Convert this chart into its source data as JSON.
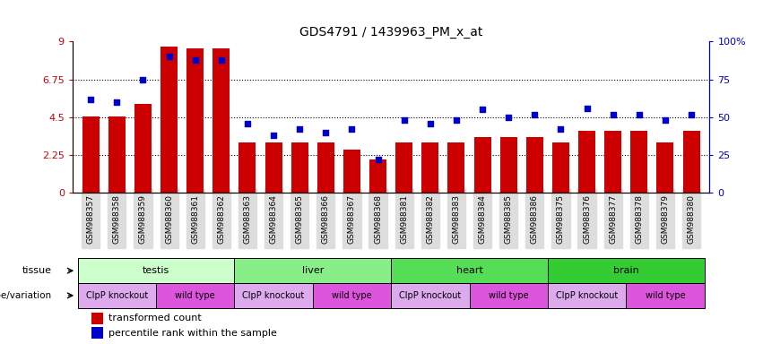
{
  "title": "GDS4791 / 1439963_PM_x_at",
  "samples": [
    "GSM988357",
    "GSM988358",
    "GSM988359",
    "GSM988360",
    "GSM988361",
    "GSM988362",
    "GSM988363",
    "GSM988364",
    "GSM988365",
    "GSM988366",
    "GSM988367",
    "GSM988368",
    "GSM988381",
    "GSM988382",
    "GSM988383",
    "GSM988384",
    "GSM988385",
    "GSM988386",
    "GSM988375",
    "GSM988376",
    "GSM988377",
    "GSM988378",
    "GSM988379",
    "GSM988380"
  ],
  "bar_values": [
    4.55,
    4.55,
    5.3,
    8.7,
    8.6,
    8.6,
    3.0,
    3.0,
    3.0,
    3.0,
    2.6,
    2.0,
    3.0,
    3.0,
    3.0,
    3.3,
    3.3,
    3.3,
    3.0,
    3.7,
    3.7,
    3.7,
    3.0,
    3.7
  ],
  "dot_values": [
    62,
    60,
    75,
    90,
    88,
    88,
    46,
    38,
    42,
    40,
    42,
    22,
    48,
    46,
    48,
    55,
    50,
    52,
    42,
    56,
    52,
    52,
    48,
    52
  ],
  "bar_color": "#cc0000",
  "dot_color": "#0000cc",
  "ylim_left": [
    0,
    9
  ],
  "ylim_right": [
    0,
    100
  ],
  "yticks_left": [
    0,
    2.25,
    4.5,
    6.75,
    9
  ],
  "ytick_labels_left": [
    "0",
    "2.25",
    "4.5",
    "6.75",
    "9"
  ],
  "yticks_right": [
    0,
    25,
    50,
    75,
    100
  ],
  "ytick_labels_right": [
    "0",
    "25",
    "50",
    "75",
    "100%"
  ],
  "hlines": [
    2.25,
    4.5,
    6.75
  ],
  "tissue_groups": [
    {
      "label": "testis",
      "start": 0,
      "end": 6,
      "color": "#ccffcc"
    },
    {
      "label": "liver",
      "start": 6,
      "end": 12,
      "color": "#88ee88"
    },
    {
      "label": "heart",
      "start": 12,
      "end": 18,
      "color": "#55dd55"
    },
    {
      "label": "brain",
      "start": 18,
      "end": 24,
      "color": "#33cc33"
    }
  ],
  "genotype_groups": [
    {
      "label": "ClpP knockout",
      "start": 0,
      "end": 3,
      "color": "#ddaaee"
    },
    {
      "label": "wild type",
      "start": 3,
      "end": 6,
      "color": "#dd55dd"
    },
    {
      "label": "ClpP knockout",
      "start": 6,
      "end": 9,
      "color": "#ddaaee"
    },
    {
      "label": "wild type",
      "start": 9,
      "end": 12,
      "color": "#dd55dd"
    },
    {
      "label": "ClpP knockout",
      "start": 12,
      "end": 15,
      "color": "#ddaaee"
    },
    {
      "label": "wild type",
      "start": 15,
      "end": 18,
      "color": "#dd55dd"
    },
    {
      "label": "ClpP knockout",
      "start": 18,
      "end": 21,
      "color": "#ddaaee"
    },
    {
      "label": "wild type",
      "start": 21,
      "end": 24,
      "color": "#dd55dd"
    }
  ],
  "row_label_tissue": "tissue",
  "row_label_genotype": "genotype/variation",
  "legend_bar": "transformed count",
  "legend_dot": "percentile rank within the sample",
  "xtick_bg": "#dddddd"
}
